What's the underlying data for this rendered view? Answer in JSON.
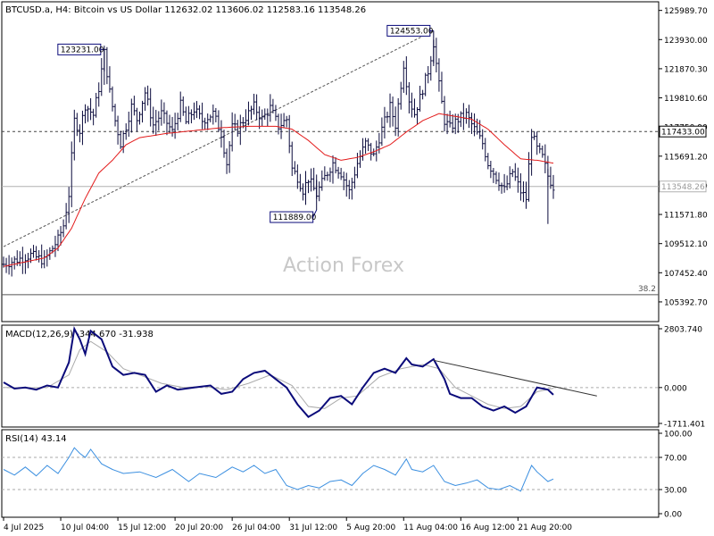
{
  "header": {
    "symbol": "BTCUSD.a, H4:  Bitcoin vs US Dollar  112632.02 113606.02 112583.16 113548.26"
  },
  "watermark": "Action Forex",
  "colors": {
    "candle": "#0a0a3c",
    "ma": "#e31b1b",
    "macd": "#0b0b7a",
    "signal": "#aaaaaa",
    "rsi": "#3b8fe0",
    "grid": "#9a9a9a"
  },
  "chart_data": [
    {
      "type": "ohlc",
      "title": "",
      "ylim": [
        104000,
        126600
      ],
      "y_ticks": [
        "125989.70",
        "123930.00",
        "121870.30",
        "119810.60",
        "117750.90",
        "115691.20",
        "113631.50",
        "111571.80",
        "109512.10",
        "107452.40",
        "105392.70"
      ],
      "x_labels": [
        "4 Jul 2025",
        "10 Jul 04:00",
        "15 Jul 12:00",
        "20 Jul 20:00",
        "26 Jul 04:00",
        "31 Jul 12:00",
        "5 Aug 20:00",
        "11 Aug 04:00",
        "16 Aug 12:00",
        "21 Aug 20:00"
      ],
      "last_price": "113548.26",
      "resistance_level": {
        "value": 117433.0,
        "label": "117433.00"
      },
      "fib_level": {
        "value": 105900,
        "label": "38.2"
      },
      "annotations": [
        {
          "label": "123231.00",
          "value": 123231.0,
          "bar": 37
        },
        {
          "label": "124553.00",
          "value": 124553.0,
          "bar": 158
        },
        {
          "label": "111889.00",
          "value": 111889.0,
          "bar": 115
        }
      ],
      "trendline": [
        {
          "bar": 0,
          "value": 109300
        },
        {
          "bar": 158,
          "value": 124553
        }
      ],
      "close_path": [
        [
          0,
          108050
        ],
        [
          10,
          108700
        ],
        [
          15,
          108300
        ],
        [
          20,
          109800
        ],
        [
          22,
          110800
        ],
        [
          24,
          113000
        ],
        [
          26,
          118200
        ],
        [
          28,
          117500
        ],
        [
          30,
          119300
        ],
        [
          33,
          118600
        ],
        [
          35,
          120500
        ],
        [
          37,
          123000
        ],
        [
          39,
          120200
        ],
        [
          41,
          118200
        ],
        [
          43,
          116600
        ],
        [
          45,
          117800
        ],
        [
          47,
          119200
        ],
        [
          49,
          118300
        ],
        [
          52,
          120200
        ],
        [
          55,
          117900
        ],
        [
          58,
          118700
        ],
        [
          62,
          117400
        ],
        [
          65,
          119300
        ],
        [
          67,
          118100
        ],
        [
          70,
          119000
        ],
        [
          73,
          118200
        ],
        [
          77,
          118700
        ],
        [
          80,
          117300
        ],
        [
          82,
          115200
        ],
        [
          84,
          117700
        ],
        [
          86,
          117600
        ],
        [
          88,
          118200
        ],
        [
          92,
          119200
        ],
        [
          95,
          118300
        ],
        [
          98,
          119100
        ],
        [
          101,
          117800
        ],
        [
          104,
          118300
        ],
        [
          106,
          114800
        ],
        [
          108,
          114200
        ],
        [
          110,
          113300
        ],
        [
          112,
          114100
        ],
        [
          115,
          113000
        ],
        [
          118,
          114200
        ],
        [
          121,
          115200
        ],
        [
          124,
          114500
        ],
        [
          127,
          113200
        ],
        [
          130,
          115200
        ],
        [
          133,
          116600
        ],
        [
          136,
          115700
        ],
        [
          139,
          117600
        ],
        [
          142,
          119200
        ],
        [
          144,
          117900
        ],
        [
          147,
          122200
        ],
        [
          149,
          119700
        ],
        [
          151,
          118700
        ],
        [
          153,
          119800
        ],
        [
          156,
          121700
        ],
        [
          158,
          123700
        ],
        [
          160,
          120700
        ],
        [
          162,
          118200
        ],
        [
          164,
          117700
        ],
        [
          167,
          118300
        ],
        [
          170,
          118600
        ],
        [
          173,
          117600
        ],
        [
          176,
          116600
        ],
        [
          178,
          115200
        ],
        [
          181,
          114200
        ],
        [
          184,
          113300
        ],
        [
          187,
          114600
        ],
        [
          190,
          113200
        ],
        [
          192,
          112700
        ],
        [
          194,
          117300
        ],
        [
          196,
          116200
        ],
        [
          198,
          115600
        ],
        [
          200,
          114300
        ],
        [
          202,
          113548
        ]
      ],
      "ma_path": [
        [
          0,
          107900
        ],
        [
          15,
          108500
        ],
        [
          20,
          109200
        ],
        [
          25,
          110600
        ],
        [
          30,
          112700
        ],
        [
          35,
          114500
        ],
        [
          40,
          115400
        ],
        [
          45,
          116500
        ],
        [
          50,
          117000
        ],
        [
          60,
          117300
        ],
        [
          70,
          117500
        ],
        [
          80,
          117700
        ],
        [
          90,
          117800
        ],
        [
          100,
          117800
        ],
        [
          106,
          117600
        ],
        [
          112,
          116800
        ],
        [
          118,
          115800
        ],
        [
          124,
          115400
        ],
        [
          130,
          115600
        ],
        [
          136,
          116000
        ],
        [
          142,
          116500
        ],
        [
          148,
          117400
        ],
        [
          154,
          118200
        ],
        [
          160,
          118700
        ],
        [
          166,
          118500
        ],
        [
          172,
          118300
        ],
        [
          178,
          117600
        ],
        [
          184,
          116500
        ],
        [
          190,
          115500
        ],
        [
          196,
          115400
        ],
        [
          202,
          115200
        ]
      ]
    },
    {
      "type": "line",
      "title": "MACD(12,26,9) -344.670 -31.938",
      "ylim": [
        -1711.401,
        2803.74
      ],
      "y_ticks": [
        "2803.740",
        "0.000",
        "-1711.401"
      ],
      "zero_line": 0,
      "trendline": [
        {
          "bar": 158,
          "value": 1300
        },
        {
          "bar": 218,
          "value": -400
        }
      ],
      "series": [
        {
          "values": [
            [
              0,
              250
            ],
            [
              4,
              -50
            ],
            [
              8,
              0
            ],
            [
              12,
              -100
            ],
            [
              16,
              100
            ],
            [
              20,
              0
            ],
            [
              24,
              1200
            ],
            [
              26,
              2800
            ],
            [
              28,
              2300
            ],
            [
              30,
              1600
            ],
            [
              32,
              2700
            ],
            [
              36,
              2300
            ],
            [
              40,
              1000
            ],
            [
              44,
              600
            ],
            [
              48,
              700
            ],
            [
              52,
              600
            ],
            [
              56,
              -200
            ],
            [
              60,
              100
            ],
            [
              64,
              -100
            ],
            [
              70,
              0
            ],
            [
              76,
              100
            ],
            [
              80,
              -300
            ],
            [
              84,
              -200
            ],
            [
              88,
              400
            ],
            [
              92,
              700
            ],
            [
              96,
              800
            ],
            [
              100,
              400
            ],
            [
              104,
              0
            ],
            [
              108,
              -800
            ],
            [
              112,
              -1400
            ],
            [
              116,
              -1100
            ],
            [
              120,
              -500
            ],
            [
              124,
              -400
            ],
            [
              128,
              -800
            ],
            [
              132,
              0
            ],
            [
              136,
              700
            ],
            [
              140,
              900
            ],
            [
              144,
              700
            ],
            [
              148,
              1400
            ],
            [
              150,
              1100
            ],
            [
              154,
              1000
            ],
            [
              158,
              1350
            ],
            [
              162,
              400
            ],
            [
              164,
              -300
            ],
            [
              168,
              -500
            ],
            [
              172,
              -500
            ],
            [
              176,
              -900
            ],
            [
              180,
              -1100
            ],
            [
              184,
              -900
            ],
            [
              188,
              -1200
            ],
            [
              192,
              -900
            ],
            [
              196,
              0
            ],
            [
              200,
              -100
            ],
            [
              202,
              -345
            ]
          ]
        },
        {
          "values": [
            [
              0,
              0
            ],
            [
              8,
              -20
            ],
            [
              16,
              0
            ],
            [
              24,
              600
            ],
            [
              28,
              1800
            ],
            [
              32,
              2200
            ],
            [
              38,
              1700
            ],
            [
              44,
              900
            ],
            [
              50,
              600
            ],
            [
              58,
              200
            ],
            [
              66,
              0
            ],
            [
              74,
              50
            ],
            [
              82,
              -100
            ],
            [
              90,
              200
            ],
            [
              98,
              600
            ],
            [
              106,
              100
            ],
            [
              112,
              -900
            ],
            [
              118,
              -1000
            ],
            [
              124,
              -500
            ],
            [
              130,
              -400
            ],
            [
              138,
              500
            ],
            [
              146,
              900
            ],
            [
              154,
              1100
            ],
            [
              160,
              900
            ],
            [
              166,
              0
            ],
            [
              172,
              -400
            ],
            [
              178,
              -800
            ],
            [
              184,
              -1000
            ],
            [
              190,
              -900
            ],
            [
              196,
              -200
            ],
            [
              202,
              -32
            ]
          ]
        }
      ]
    },
    {
      "type": "line",
      "title": "RSI(14) 43.14",
      "ylim": [
        0,
        100
      ],
      "y_ticks": [
        "100.00",
        "70.00",
        "30.00",
        "0.00"
      ],
      "levels": [
        70,
        30
      ],
      "series": [
        {
          "values": [
            [
              0,
              55
            ],
            [
              4,
              48
            ],
            [
              8,
              58
            ],
            [
              12,
              47
            ],
            [
              16,
              60
            ],
            [
              20,
              50
            ],
            [
              24,
              70
            ],
            [
              26,
              82
            ],
            [
              28,
              75
            ],
            [
              30,
              70
            ],
            [
              32,
              80
            ],
            [
              36,
              62
            ],
            [
              40,
              55
            ],
            [
              44,
              50
            ],
            [
              50,
              52
            ],
            [
              56,
              45
            ],
            [
              62,
              55
            ],
            [
              68,
              40
            ],
            [
              72,
              50
            ],
            [
              78,
              45
            ],
            [
              84,
              58
            ],
            [
              88,
              52
            ],
            [
              92,
              60
            ],
            [
              96,
              50
            ],
            [
              100,
              55
            ],
            [
              104,
              35
            ],
            [
              108,
              30
            ],
            [
              112,
              35
            ],
            [
              116,
              32
            ],
            [
              120,
              40
            ],
            [
              124,
              42
            ],
            [
              128,
              35
            ],
            [
              132,
              50
            ],
            [
              136,
              60
            ],
            [
              140,
              55
            ],
            [
              144,
              48
            ],
            [
              148,
              68
            ],
            [
              150,
              55
            ],
            [
              154,
              52
            ],
            [
              158,
              60
            ],
            [
              162,
              40
            ],
            [
              166,
              35
            ],
            [
              170,
              38
            ],
            [
              174,
              42
            ],
            [
              178,
              32
            ],
            [
              182,
              30
            ],
            [
              186,
              35
            ],
            [
              190,
              28
            ],
            [
              194,
              60
            ],
            [
              196,
              52
            ],
            [
              200,
              40
            ],
            [
              202,
              43.14
            ]
          ]
        }
      ]
    }
  ]
}
